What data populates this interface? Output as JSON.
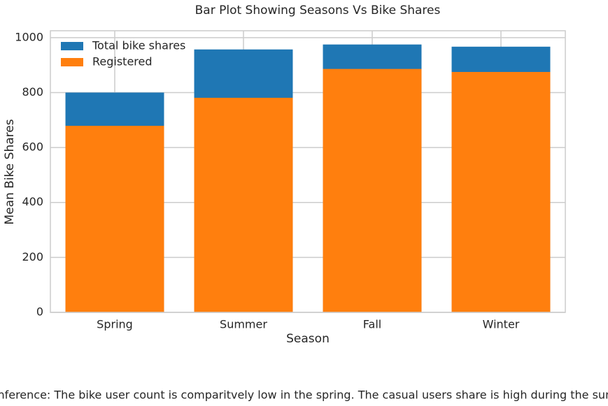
{
  "chart_data": {
    "type": "bar",
    "title": "Bar Plot Showing Seasons Vs Bike Shares",
    "xlabel": "Season",
    "ylabel": "Mean Bike Shares",
    "categories": [
      "Spring",
      "Summer",
      "Fall",
      "Winter"
    ],
    "series": [
      {
        "name": "Total bike shares",
        "color": "#1f77b4",
        "values": [
          800,
          957,
          975,
          967
        ]
      },
      {
        "name": "Registered",
        "color": "#ff7f0e",
        "values": [
          679,
          781,
          886,
          875
        ]
      }
    ],
    "ylim": [
      0,
      1025
    ],
    "yticks": [
      0,
      200,
      400,
      600,
      800,
      1000
    ],
    "grid": true,
    "legend": "upper left",
    "annotation": "Inference: The bike user count is comparitvely low in the spring. The casual users share is high during the summer."
  }
}
